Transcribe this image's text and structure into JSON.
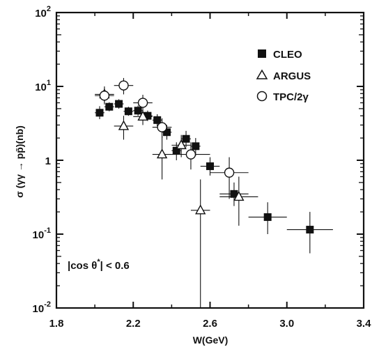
{
  "chart_data": {
    "type": "scatter",
    "title": "",
    "xlabel": "W(GeV)",
    "ylabel": "σ (γγ → pp̄)(nb)",
    "xlim": [
      1.8,
      3.4
    ],
    "ylim": [
      0.01,
      100
    ],
    "yscale": "log",
    "grid": false,
    "legend_position": "top-right",
    "x_ticks": [
      1.8,
      2.2,
      2.6,
      3.0,
      3.4
    ],
    "x_tick_labels": [
      "1.8",
      "2.2",
      "2.6",
      "3.0",
      "3.4"
    ],
    "y_ticks": [
      0.01,
      0.1,
      1,
      10,
      100
    ],
    "y_tick_labels": [
      {
        "base": "10",
        "exp": "-2"
      },
      {
        "base": "10",
        "exp": "-1"
      },
      {
        "base": "1",
        "exp": ""
      },
      {
        "base": "10",
        "exp": "1"
      },
      {
        "base": "10",
        "exp": "2"
      }
    ],
    "annotation": {
      "pre": "|cos θ",
      "sup": "*",
      "post": "| < 0.6"
    },
    "series": [
      {
        "name": "CLEO",
        "marker": "filled-square",
        "points": [
          {
            "x": 2.025,
            "y": 4.4,
            "xerr": 0.025,
            "ylo": 3.6,
            "yhi": 5.4
          },
          {
            "x": 2.075,
            "y": 5.3,
            "xerr": 0.025,
            "ylo": 4.6,
            "yhi": 6.1
          },
          {
            "x": 2.125,
            "y": 5.8,
            "xerr": 0.025,
            "ylo": 5.0,
            "yhi": 6.7
          },
          {
            "x": 2.175,
            "y": 4.6,
            "xerr": 0.025,
            "ylo": 4.0,
            "yhi": 5.3
          },
          {
            "x": 2.225,
            "y": 4.7,
            "xerr": 0.025,
            "ylo": 4.0,
            "yhi": 5.5
          },
          {
            "x": 2.275,
            "y": 4.0,
            "xerr": 0.025,
            "ylo": 3.4,
            "yhi": 4.7
          },
          {
            "x": 2.325,
            "y": 3.5,
            "xerr": 0.025,
            "ylo": 2.9,
            "yhi": 4.2
          },
          {
            "x": 2.375,
            "y": 2.4,
            "xerr": 0.025,
            "ylo": 1.9,
            "yhi": 3.0
          },
          {
            "x": 2.425,
            "y": 1.35,
            "xerr": 0.025,
            "ylo": 1.0,
            "yhi": 1.75
          },
          {
            "x": 2.475,
            "y": 1.95,
            "xerr": 0.025,
            "ylo": 1.5,
            "yhi": 2.5
          },
          {
            "x": 2.525,
            "y": 1.55,
            "xerr": 0.025,
            "ylo": 1.15,
            "yhi": 2.0
          },
          {
            "x": 2.6,
            "y": 0.83,
            "xerr": 0.05,
            "ylo": 0.62,
            "yhi": 1.1
          },
          {
            "x": 2.725,
            "y": 0.35,
            "xerr": 0.075,
            "ylo": 0.24,
            "yhi": 0.5
          },
          {
            "x": 2.9,
            "y": 0.17,
            "xerr": 0.1,
            "ylo": 0.1,
            "yhi": 0.27
          },
          {
            "x": 3.12,
            "y": 0.115,
            "xerr": 0.12,
            "ylo": 0.055,
            "yhi": 0.2
          }
        ]
      },
      {
        "name": "ARGUS",
        "marker": "open-triangle",
        "points": [
          {
            "x": 2.05,
            "y": 7.8,
            "xerr": 0.05,
            "ylo": 6.0,
            "yhi": 10.0
          },
          {
            "x": 2.15,
            "y": 2.9,
            "xerr": 0.05,
            "ylo": 1.9,
            "yhi": 4.0
          },
          {
            "x": 2.25,
            "y": 3.9,
            "xerr": 0.05,
            "ylo": 3.0,
            "yhi": 4.8
          },
          {
            "x": 2.35,
            "y": 1.2,
            "xerr": 0.05,
            "ylo": 0.55,
            "yhi": 2.1
          },
          {
            "x": 2.45,
            "y": 1.6,
            "xerr": 0.05,
            "ylo": 1.1,
            "yhi": 2.2
          },
          {
            "x": 2.55,
            "y": 0.21,
            "xerr": 0.05,
            "ylo": 0.008,
            "yhi": 0.55
          },
          {
            "x": 2.75,
            "y": 0.32,
            "xerr": 0.1,
            "ylo": 0.13,
            "yhi": 0.6
          }
        ]
      },
      {
        "name": "TPC/2γ",
        "marker": "open-circle",
        "points": [
          {
            "x": 2.05,
            "y": 7.5,
            "xerr": 0.05,
            "ylo": 5.7,
            "yhi": 9.5
          },
          {
            "x": 2.15,
            "y": 10.3,
            "xerr": 0.05,
            "ylo": 7.8,
            "yhi": 13.0
          },
          {
            "x": 2.25,
            "y": 6.0,
            "xerr": 0.05,
            "ylo": 4.5,
            "yhi": 7.7
          },
          {
            "x": 2.35,
            "y": 2.8,
            "xerr": 0.05,
            "ylo": 2.0,
            "yhi": 3.7
          },
          {
            "x": 2.5,
            "y": 1.2,
            "xerr": 0.1,
            "ylo": 0.75,
            "yhi": 1.75
          },
          {
            "x": 2.7,
            "y": 0.68,
            "xerr": 0.1,
            "ylo": 0.3,
            "yhi": 1.1
          }
        ]
      }
    ]
  }
}
